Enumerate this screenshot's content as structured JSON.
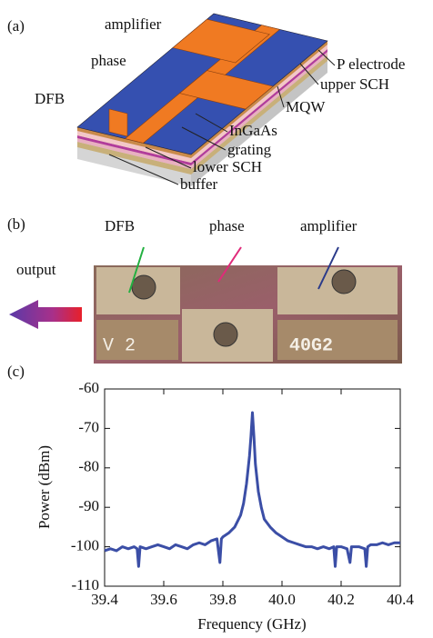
{
  "panel_a": {
    "label": "(a)",
    "annotations": [
      "amplifier",
      "phase",
      "DFB",
      "P electrode",
      "upper SCH",
      "MQW",
      "InGaAs",
      "grating",
      "lower SCH",
      "buffer"
    ]
  },
  "panel_b": {
    "label": "(b)",
    "annotations": [
      "DFB",
      "phase",
      "amplifier",
      "output"
    ],
    "chip_text": [
      "V 2",
      "40G2"
    ]
  },
  "chart_data": {
    "type": "line",
    "panel_label": "(c)",
    "x_label": "Frequency (GHz)",
    "y_label": "Power (dBm)",
    "color": "#3b4ea6",
    "x": [
      39.4,
      39.42,
      39.44,
      39.46,
      39.48,
      39.5,
      39.51,
      39.515,
      39.52,
      39.54,
      39.56,
      39.58,
      39.6,
      39.62,
      39.64,
      39.66,
      39.68,
      39.7,
      39.72,
      39.74,
      39.76,
      39.78,
      39.79,
      39.795,
      39.8,
      39.82,
      39.84,
      39.86,
      39.87,
      39.88,
      39.89,
      39.895,
      39.9,
      39.905,
      39.91,
      39.92,
      39.93,
      39.94,
      39.96,
      39.98,
      40.0,
      40.02,
      40.04,
      40.06,
      40.08,
      40.1,
      40.12,
      40.14,
      40.16,
      40.175,
      40.18,
      40.185,
      40.2,
      40.22,
      40.23,
      40.235,
      40.26,
      40.28,
      40.285,
      40.29,
      40.3,
      40.32,
      40.34,
      40.36,
      40.38,
      40.4
    ],
    "values": [
      -101,
      -100.5,
      -101,
      -100,
      -100.5,
      -100,
      -100.5,
      -105,
      -100,
      -100.5,
      -100,
      -99.5,
      -100,
      -100.5,
      -99.5,
      -100,
      -100.5,
      -99.5,
      -99,
      -99.5,
      -98.5,
      -98,
      -104,
      -98,
      -97.5,
      -96.5,
      -95,
      -92,
      -89,
      -84,
      -77,
      -72,
      -66,
      -72,
      -79,
      -86,
      -90,
      -93,
      -95,
      -96.5,
      -97.5,
      -98.5,
      -99,
      -99.5,
      -100,
      -100,
      -100.5,
      -100,
      -100.5,
      -100,
      -105,
      -100,
      -100,
      -100.5,
      -104,
      -100,
      -100,
      -100.5,
      -105,
      -100,
      -99.5,
      -99.5,
      -99,
      -99.5,
      -99,
      -99
    ],
    "xlim": [
      39.4,
      40.4
    ],
    "xticks": [
      39.4,
      39.6,
      39.8,
      {
        "value": 40,
        "label": "40.0"
      },
      40.2,
      40.4
    ],
    "ylim": [
      -110,
      -60
    ],
    "yticks": [
      -110,
      -100,
      -90,
      -80,
      -70,
      -60
    ]
  }
}
